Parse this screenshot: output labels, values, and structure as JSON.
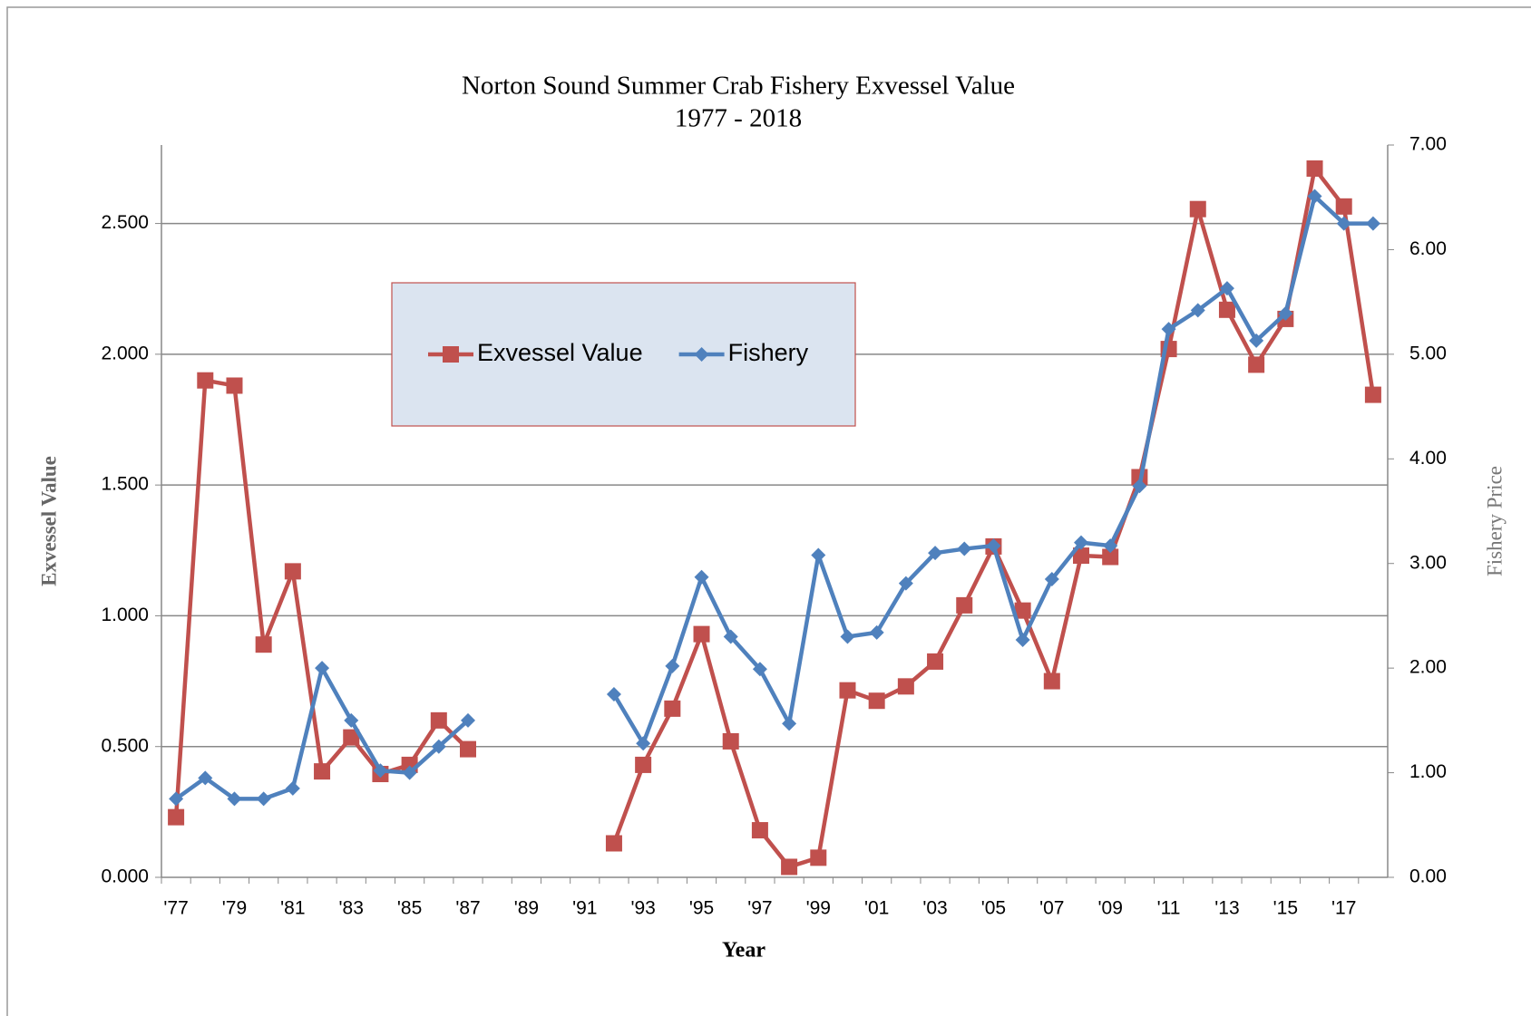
{
  "chart_data": {
    "type": "line",
    "title": "Norton Sound Summer Crab Fishery Exvessel Value",
    "subtitle": "1977 - 2018",
    "x_label": "Year",
    "y_label": "Exvessel Value",
    "y2_label": "Fishery Price",
    "categories": [
      "'77",
      null,
      "'79",
      null,
      "'81",
      null,
      "'83",
      null,
      "'85",
      null,
      "'87",
      null,
      "'89",
      null,
      "'91",
      null,
      "'93",
      null,
      "'95",
      null,
      "'97",
      null,
      "'99",
      null,
      "'01",
      null,
      "'03",
      null,
      "'05",
      null,
      "'07",
      null,
      "'09",
      null,
      "'11",
      null,
      "'13",
      null,
      "'15",
      null,
      "'17",
      null
    ],
    "series": [
      {
        "name": "Exvessel Value",
        "color": "#c0504d",
        "marker": "square",
        "values": [
          0.23,
          1.9,
          1.88,
          0.89,
          1.17,
          0.405,
          0.535,
          0.395,
          0.43,
          0.6,
          0.49,
          null,
          null,
          null,
          null,
          0.13,
          0.43,
          0.645,
          0.93,
          0.52,
          0.18,
          0.04,
          0.075,
          0.715,
          0.675,
          0.73,
          0.825,
          1.04,
          1.265,
          1.02,
          0.75,
          1.23,
          1.225,
          1.53,
          2.02,
          2.555,
          2.17,
          1.96,
          2.135,
          2.71,
          2.565,
          1.845
        ]
      },
      {
        "name": "Fishery",
        "color": "#4f81bd",
        "marker": "diamond",
        "axis": "y2",
        "values": [
          0.75,
          0.95,
          0.75,
          0.75,
          0.85,
          2.0,
          1.5,
          1.02,
          1.0,
          1.25,
          1.5,
          null,
          null,
          null,
          null,
          1.75,
          1.28,
          2.02,
          2.87,
          2.3,
          1.99,
          1.47,
          3.08,
          2.3,
          2.34,
          2.81,
          3.1,
          3.14,
          3.17,
          2.27,
          2.85,
          3.2,
          3.17,
          3.74,
          5.24,
          5.42,
          5.63,
          5.13,
          5.39,
          6.51,
          6.25,
          6.25
        ]
      }
    ],
    "ylim": [
      0,
      2.8
    ],
    "yticks": [
      {
        "value": 0,
        "label": "0.000"
      },
      {
        "value": 0.5,
        "label": "0.500"
      },
      {
        "value": 1,
        "label": "1.000"
      },
      {
        "value": 1.5,
        "label": "1.500"
      },
      {
        "value": 2,
        "label": "2.000"
      },
      {
        "value": 2.5,
        "label": "2.500"
      }
    ],
    "y2lim": [
      0,
      7
    ],
    "y2ticks": [
      {
        "value": 0,
        "label": "0.00"
      },
      {
        "value": 1,
        "label": "1.00"
      },
      {
        "value": 2,
        "label": "2.00"
      },
      {
        "value": 3,
        "label": "3.00"
      },
      {
        "value": 4,
        "label": "4.00"
      },
      {
        "value": 5,
        "label": "5.00"
      },
      {
        "value": 6,
        "label": "6.00"
      },
      {
        "value": 7,
        "label": "7.00"
      }
    ],
    "grid": true,
    "legend": "upper-left"
  }
}
